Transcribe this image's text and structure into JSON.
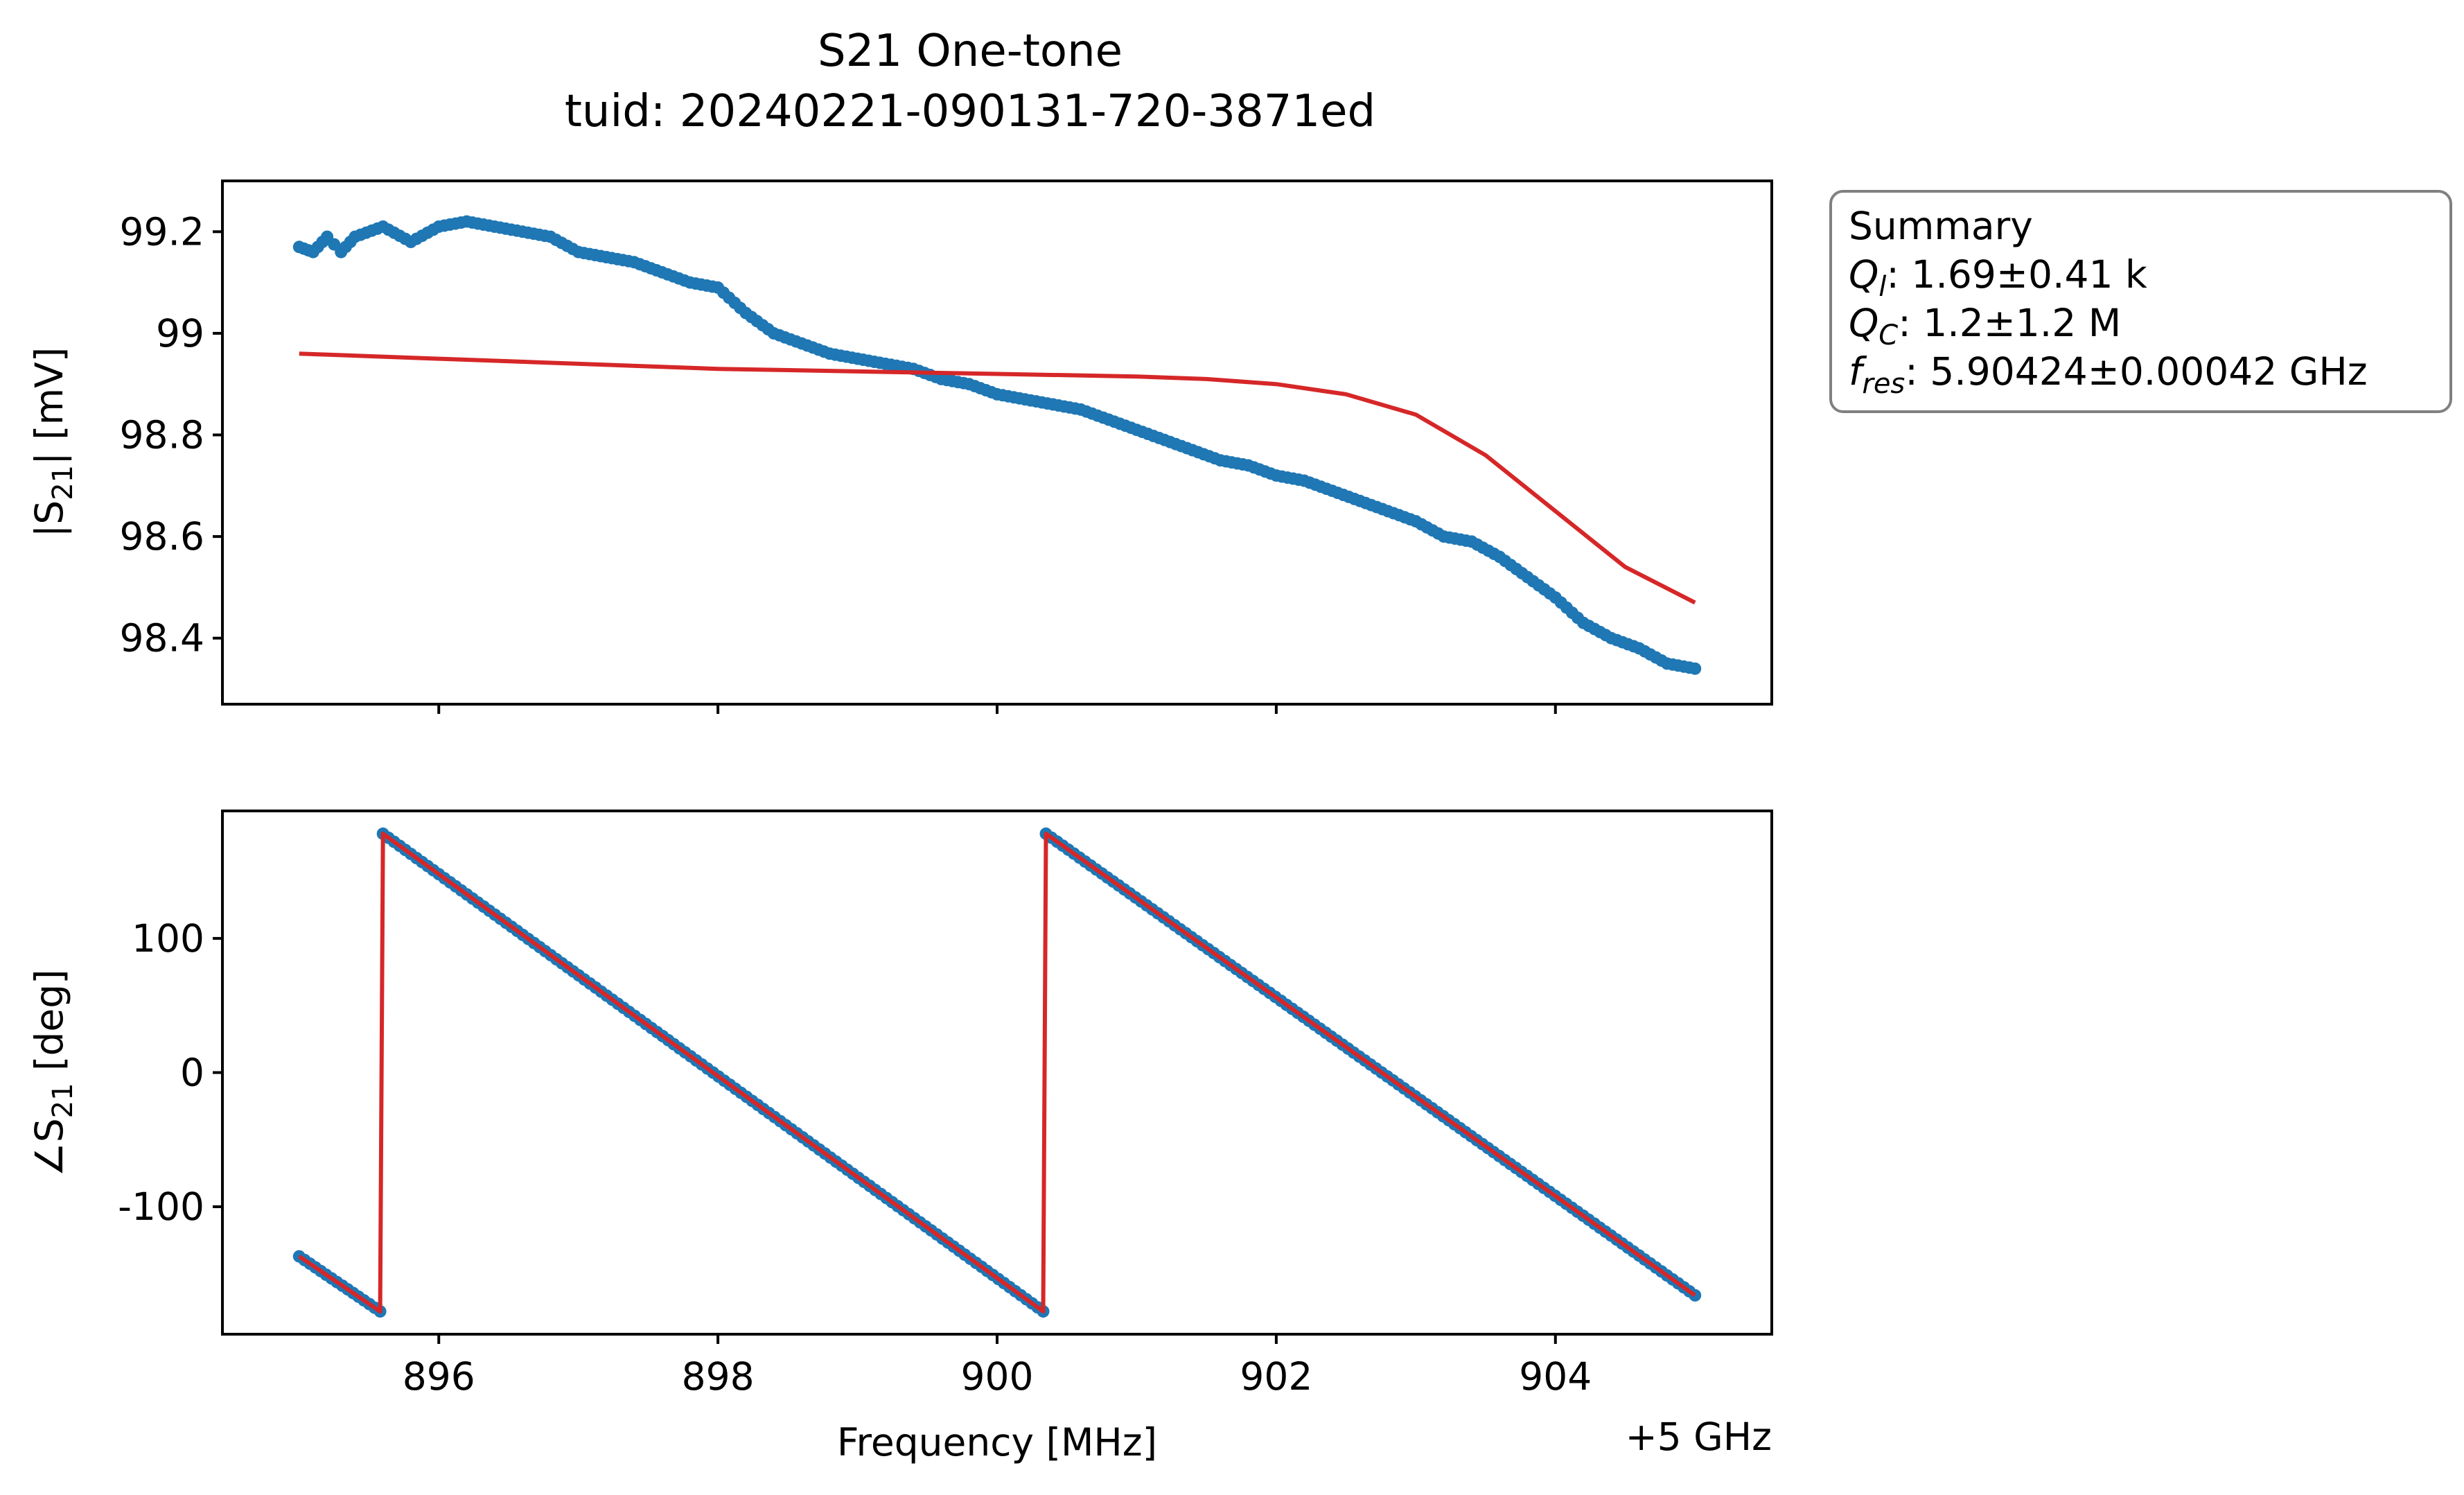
{
  "figure": {
    "title_lines": [
      "S21 One-tone",
      "tuid: 20240221-090131-720-3871ed"
    ],
    "colors": {
      "data": "#1f77b4",
      "fit": "#d62728",
      "box_border": "#808080"
    }
  },
  "summary": {
    "heading": "Summary",
    "rows": [
      {
        "sym": "Q",
        "sub": "l",
        "text": ": 1.69±0.41 k"
      },
      {
        "sym": "Q",
        "sub": "C",
        "text": ": 1.2±1.2 M"
      },
      {
        "sym": "f",
        "sub": "res",
        "text": ": 5.90424±0.00042 GHz"
      }
    ]
  },
  "axes_top": {
    "ylabel_pre": "|S",
    "ylabel_sub": "21",
    "ylabel_post": "| [mV]"
  },
  "axes_bottom": {
    "ylabel_pre": "∠S",
    "ylabel_sub": "21",
    "ylabel_post": " [deg]",
    "xlabel": "Frequency [MHz]",
    "x_offset_label": "+5 GHz"
  },
  "chart_data": [
    {
      "type": "line",
      "panel": "magnitude",
      "xlim": [
        894.45,
        905.55
      ],
      "ylim": [
        98.27,
        99.3
      ],
      "xticks": [
        896,
        898,
        900,
        902,
        904
      ],
      "yticks": [
        98.4,
        98.6,
        98.8,
        99.0,
        99.2
      ],
      "ytick_labels": [
        "98.4",
        "98.6",
        "98.8",
        "99",
        "99.2"
      ],
      "x_range": [
        895,
        905
      ],
      "grid": false,
      "series": [
        {
          "role": "data",
          "markers": true,
          "points": [
            [
              895.0,
              99.17
            ],
            [
              895.1,
              99.16
            ],
            [
              895.2,
              99.19
            ],
            [
              895.3,
              99.16
            ],
            [
              895.4,
              99.19
            ],
            [
              895.6,
              99.21
            ],
            [
              895.8,
              99.18
            ],
            [
              896.0,
              99.21
            ],
            [
              896.2,
              99.22
            ],
            [
              896.4,
              99.21
            ],
            [
              896.6,
              99.2
            ],
            [
              896.8,
              99.19
            ],
            [
              897.0,
              99.16
            ],
            [
              897.2,
              99.15
            ],
            [
              897.4,
              99.14
            ],
            [
              897.6,
              99.12
            ],
            [
              897.8,
              99.1
            ],
            [
              898.0,
              99.09
            ],
            [
              898.2,
              99.04
            ],
            [
              898.4,
              99.0
            ],
            [
              898.6,
              98.98
            ],
            [
              898.8,
              98.96
            ],
            [
              899.0,
              98.95
            ],
            [
              899.2,
              98.94
            ],
            [
              899.4,
              98.93
            ],
            [
              899.6,
              98.91
            ],
            [
              899.8,
              98.9
            ],
            [
              900.0,
              98.88
            ],
            [
              900.2,
              98.87
            ],
            [
              900.4,
              98.86
            ],
            [
              900.6,
              98.85
            ],
            [
              900.8,
              98.83
            ],
            [
              901.0,
              98.81
            ],
            [
              901.2,
              98.79
            ],
            [
              901.4,
              98.77
            ],
            [
              901.6,
              98.75
            ],
            [
              901.8,
              98.74
            ],
            [
              902.0,
              98.72
            ],
            [
              902.2,
              98.71
            ],
            [
              902.4,
              98.69
            ],
            [
              902.6,
              98.67
            ],
            [
              902.8,
              98.65
            ],
            [
              903.0,
              98.63
            ],
            [
              903.2,
              98.6
            ],
            [
              903.4,
              98.59
            ],
            [
              903.6,
              98.56
            ],
            [
              903.8,
              98.52
            ],
            [
              904.0,
              98.48
            ],
            [
              904.2,
              98.43
            ],
            [
              904.4,
              98.4
            ],
            [
              904.6,
              98.38
            ],
            [
              904.8,
              98.35
            ],
            [
              905.0,
              98.34
            ]
          ]
        },
        {
          "role": "fit",
          "markers": false,
          "points": [
            [
              895.0,
              98.96
            ],
            [
              896.0,
              98.95
            ],
            [
              897.0,
              98.94
            ],
            [
              898.0,
              98.93
            ],
            [
              899.0,
              98.925
            ],
            [
              900.0,
              98.92
            ],
            [
              901.0,
              98.915
            ],
            [
              901.5,
              98.91
            ],
            [
              902.0,
              98.9
            ],
            [
              902.5,
              98.88
            ],
            [
              903.0,
              98.84
            ],
            [
              903.5,
              98.76
            ],
            [
              904.0,
              98.65
            ],
            [
              904.5,
              98.54
            ],
            [
              905.0,
              98.47
            ]
          ]
        }
      ]
    },
    {
      "type": "line",
      "panel": "phase",
      "xlim": [
        894.45,
        905.55
      ],
      "ylim": [
        -195,
        195
      ],
      "xticks": [
        896,
        898,
        900,
        902,
        904
      ],
      "xtick_labels": [
        "896",
        "898",
        "900",
        "902",
        "904"
      ],
      "yticks": [
        -100,
        0,
        100
      ],
      "ytick_labels": [
        "-100",
        "0",
        "100"
      ],
      "grid": false,
      "series": [
        {
          "role": "data",
          "markers": true,
          "points": [
            [
              895.0,
              -137
            ],
            [
              895.58,
              -178
            ],
            [
              895.6,
              178
            ],
            [
              900.33,
              -178
            ],
            [
              900.35,
              178
            ],
            [
              905.0,
              -166
            ]
          ]
        },
        {
          "role": "fit",
          "markers": false,
          "points": [
            [
              895.0,
              -137
            ],
            [
              895.58,
              -178
            ],
            [
              895.6,
              178
            ],
            [
              900.33,
              -178
            ],
            [
              900.35,
              178
            ],
            [
              905.0,
              -166
            ]
          ]
        }
      ]
    }
  ]
}
